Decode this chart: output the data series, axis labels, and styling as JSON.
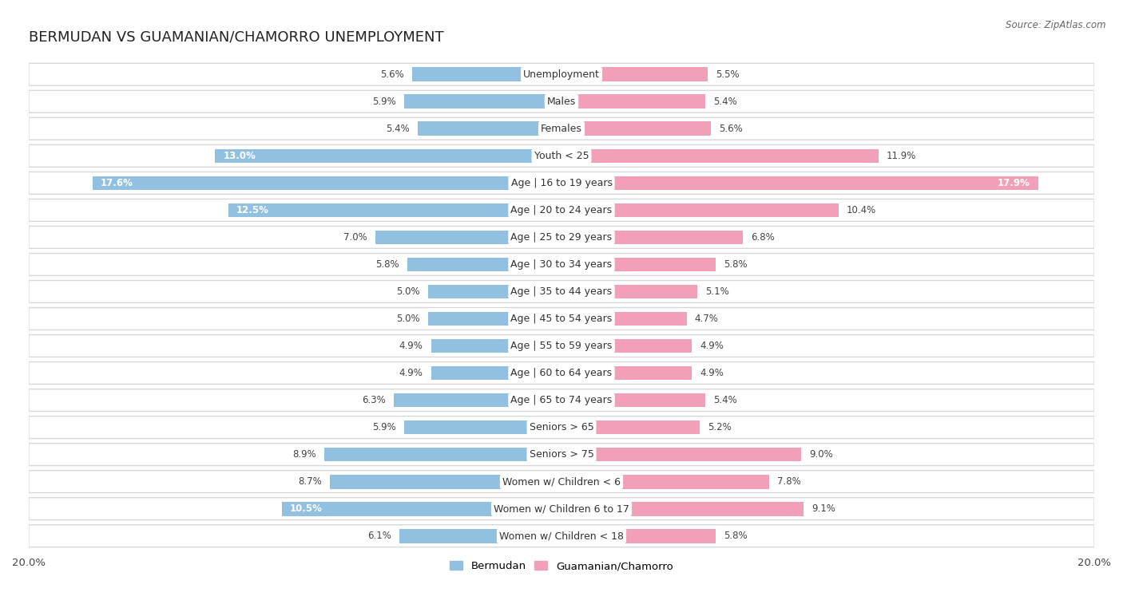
{
  "title": "BERMUDAN VS GUAMANIAN/CHAMORRO UNEMPLOYMENT",
  "source": "Source: ZipAtlas.com",
  "categories": [
    "Unemployment",
    "Males",
    "Females",
    "Youth < 25",
    "Age | 16 to 19 years",
    "Age | 20 to 24 years",
    "Age | 25 to 29 years",
    "Age | 30 to 34 years",
    "Age | 35 to 44 years",
    "Age | 45 to 54 years",
    "Age | 55 to 59 years",
    "Age | 60 to 64 years",
    "Age | 65 to 74 years",
    "Seniors > 65",
    "Seniors > 75",
    "Women w/ Children < 6",
    "Women w/ Children 6 to 17",
    "Women w/ Children < 18"
  ],
  "bermudan": [
    5.6,
    5.9,
    5.4,
    13.0,
    17.6,
    12.5,
    7.0,
    5.8,
    5.0,
    5.0,
    4.9,
    4.9,
    6.3,
    5.9,
    8.9,
    8.7,
    10.5,
    6.1
  ],
  "guamanian": [
    5.5,
    5.4,
    5.6,
    11.9,
    17.9,
    10.4,
    6.8,
    5.8,
    5.1,
    4.7,
    4.9,
    4.9,
    5.4,
    5.2,
    9.0,
    7.8,
    9.1,
    5.8
  ],
  "bermudan_color": "#92c0e0",
  "guamanian_color": "#f2a0b8",
  "bg_color": "#ffffff",
  "row_bg_color": "#ffffff",
  "row_border_color": "#d8d8d8",
  "max_val": 20.0,
  "legend_bermudan": "Bermudan",
  "legend_guamanian": "Guamanian/Chamorro",
  "title_fontsize": 13,
  "label_fontsize": 9,
  "value_fontsize": 8.5,
  "axis_label_left": "20.0%",
  "axis_label_right": "20.0%"
}
